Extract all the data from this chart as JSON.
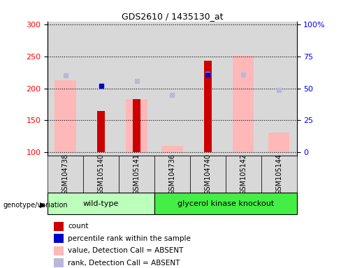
{
  "title": "GDS2610 / 1435130_at",
  "samples": [
    "GSM104738",
    "GSM105140",
    "GSM105141",
    "GSM104736",
    "GSM104740",
    "GSM105142",
    "GSM105144"
  ],
  "groups": [
    "wild-type",
    "wild-type",
    "wild-type",
    "glycerol kinase knockout",
    "glycerol kinase knockout",
    "glycerol kinase knockout",
    "glycerol kinase knockout"
  ],
  "ylim_left": [
    95,
    305
  ],
  "ylim_right": [
    0,
    100
  ],
  "yticks_left": [
    100,
    150,
    200,
    250,
    300
  ],
  "yticks_right": [
    0,
    25,
    50,
    75,
    100
  ],
  "yticklabels_right": [
    "0",
    "25",
    "50",
    "75",
    "100%"
  ],
  "count_values": [
    null,
    165,
    183,
    null,
    243,
    null,
    null
  ],
  "count_color": "#cc0000",
  "rank_values": [
    null,
    204,
    null,
    null,
    222,
    null,
    null
  ],
  "rank_color": "#0000cc",
  "value_absent": [
    213,
    null,
    183,
    110,
    null,
    251,
    131
  ],
  "value_absent_color": "#ffb8b8",
  "rank_absent": [
    221,
    null,
    212,
    190,
    223,
    222,
    197
  ],
  "rank_absent_color": "#b8b8dd",
  "group_colors": {
    "wild-type": "#bbffbb",
    "glycerol kinase knockout": "#44ee44"
  },
  "group_label": "genotype/variation",
  "bar_base": 100,
  "legend_items": [
    {
      "label": "count",
      "color": "#cc0000"
    },
    {
      "label": "percentile rank within the sample",
      "color": "#0000cc"
    },
    {
      "label": "value, Detection Call = ABSENT",
      "color": "#ffb8b8"
    },
    {
      "label": "rank, Detection Call = ABSENT",
      "color": "#b8b8dd"
    }
  ]
}
